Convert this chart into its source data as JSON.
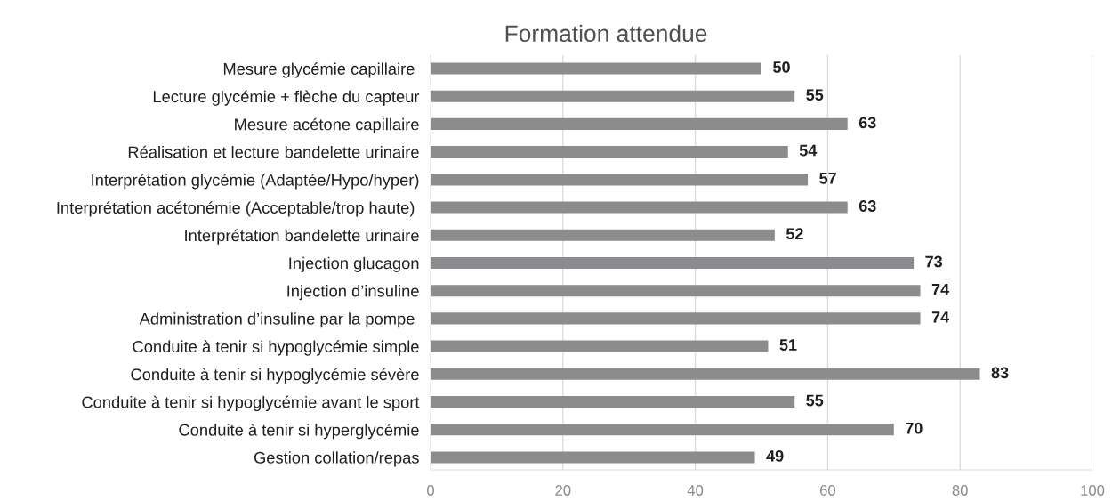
{
  "chart_data": {
    "type": "bar",
    "orientation": "horizontal",
    "title": "Formation attendue",
    "categories": [
      "Mesure glycémie capillaire ",
      "Lecture glycémie + flèche du capteur",
      "Mesure acétone capillaire",
      "Réalisation et lecture bandelette urinaire",
      "Interprétation glycémie (Adaptée/Hypo/hyper)",
      "Interprétation acétonémie (Acceptable/trop haute) ",
      "Interprétation bandelette urinaire",
      "Injection glucagon",
      "Injection d’insuline",
      "Administration d’insuline par la pompe ",
      "Conduite à tenir si hypoglycémie simple",
      "Conduite à tenir si hypoglycémie sévère",
      "Conduite à tenir si hypoglycémie avant le sport",
      "Conduite à tenir si hyperglycémie",
      "Gestion collation/repas"
    ],
    "values": [
      50,
      55,
      63,
      54,
      57,
      63,
      52,
      73,
      74,
      74,
      51,
      83,
      55,
      70,
      49
    ],
    "color": "#8c8c8e",
    "xlim": [
      0,
      100
    ],
    "xticks": [
      0,
      20,
      40,
      60,
      80,
      100
    ],
    "grid": "x",
    "data_labels": true
  }
}
